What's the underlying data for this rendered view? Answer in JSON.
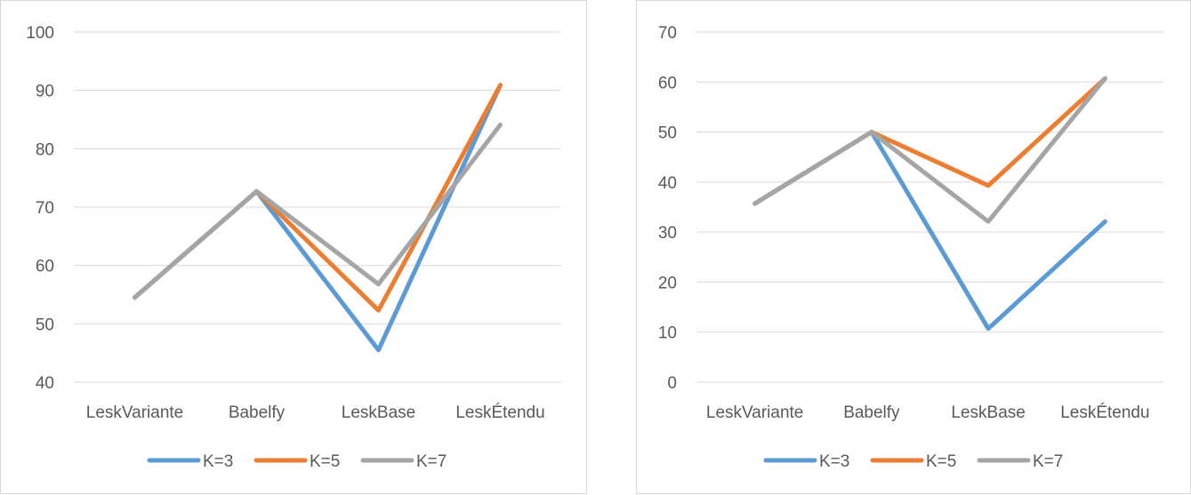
{
  "chart_data": [
    {
      "type": "line",
      "categories": [
        "LeskVariante",
        "Babelfy",
        "LeskBase",
        "LeskÉtendu"
      ],
      "ylim": [
        40,
        100
      ],
      "yticks": [
        40,
        50,
        60,
        70,
        80,
        90,
        100
      ],
      "grid": true,
      "legend": "bottom",
      "series": [
        {
          "name": "K=3",
          "color": "#5b9bd5",
          "values": [
            54.5,
            72.7,
            45.5,
            90.9
          ]
        },
        {
          "name": "K=5",
          "color": "#ed7d31",
          "values": [
            54.5,
            72.7,
            52.3,
            90.9
          ]
        },
        {
          "name": "K=7",
          "color": "#a5a5a5",
          "values": [
            54.5,
            72.7,
            56.8,
            84.1
          ]
        }
      ]
    },
    {
      "type": "line",
      "categories": [
        "LeskVariante",
        "Babelfy",
        "LeskBase",
        "LeskÉtendu"
      ],
      "ylim": [
        0,
        70
      ],
      "yticks": [
        0,
        10,
        20,
        30,
        40,
        50,
        60,
        70
      ],
      "grid": true,
      "legend": "bottom",
      "series": [
        {
          "name": "K=3",
          "color": "#5b9bd5",
          "values": [
            35.7,
            50.0,
            10.7,
            32.1
          ]
        },
        {
          "name": "K=5",
          "color": "#ed7d31",
          "values": [
            35.7,
            50.0,
            39.3,
            60.7
          ]
        },
        {
          "name": "K=7",
          "color": "#a5a5a5",
          "values": [
            35.7,
            50.0,
            32.1,
            60.7
          ]
        }
      ]
    }
  ]
}
